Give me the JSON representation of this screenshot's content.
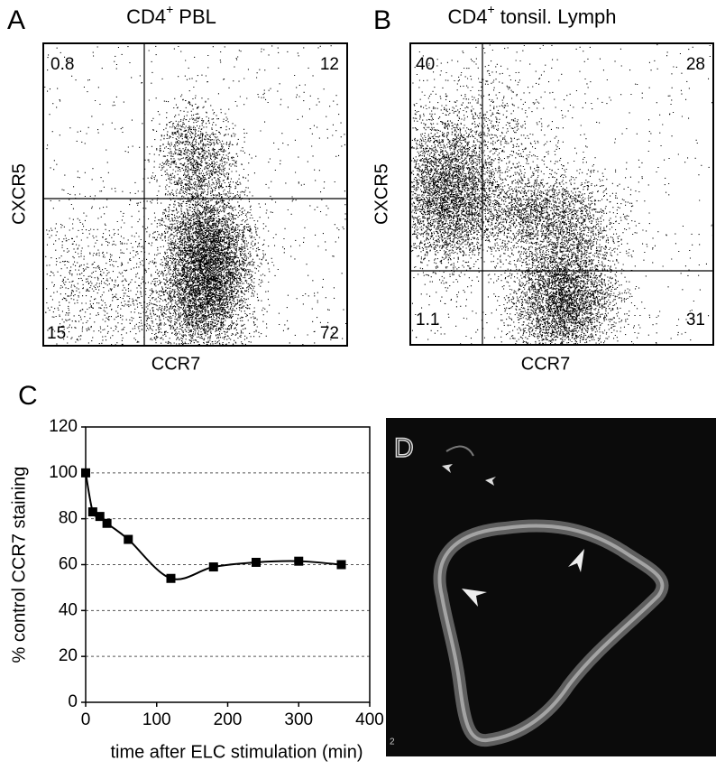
{
  "panels": [
    {
      "label": "A",
      "title": {
        "main": "CD4",
        "sup": "+",
        "rest": "PBL"
      },
      "x_label": "CCR7",
      "y_label": "CXCR5",
      "quadrants": {
        "upper_left": 0.8,
        "upper_right": 12,
        "lower_left": 15,
        "lower_right": 72
      }
    },
    {
      "label": "B",
      "title": {
        "main": "CD4",
        "sup": "+",
        "rest": "tonsil. Lymph"
      },
      "x_label": "CCR7",
      "y_label": "CXCR5",
      "quadrants": {
        "upper_left": 40,
        "upper_right": 28,
        "lower_left": 1.1,
        "lower_right": 31
      }
    }
  ],
  "chart_data": {
    "type": "line",
    "panel_label": "C",
    "x_label": "time after ELC stimulation (min)",
    "y_label": "% control CCR7 staining",
    "x": [
      0,
      10,
      20,
      30,
      60,
      120,
      180,
      240,
      300,
      360
    ],
    "values": [
      100,
      83,
      81,
      78,
      71,
      54,
      59,
      61,
      61.5,
      60
    ],
    "color": "#000000",
    "xlim": [
      0,
      400
    ],
    "ylim": [
      0,
      120
    ],
    "xticks": [
      0,
      100,
      200,
      300,
      400
    ],
    "yticks": [
      0,
      20,
      40,
      60,
      80,
      100,
      120
    ],
    "grid": true
  },
  "image_panel": {
    "label": "D",
    "scale_mark": "2"
  }
}
